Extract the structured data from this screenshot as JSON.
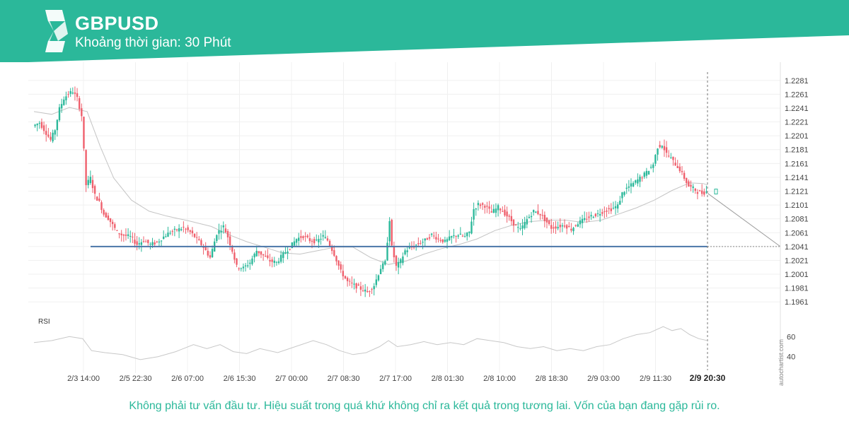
{
  "header": {
    "symbol": "GBPUSD",
    "interval_label": "Khoảng thời gian: 30 Phút",
    "brand_color": "#2bb89a"
  },
  "watermark": "autochartist.com",
  "disclaimer": "Không phải tư vấn đầu tư. Hiệu suất trong quá khứ không chỉ ra kết quả trong tương lai. Vốn của bạn đang gặp rủi ro.",
  "colors": {
    "up": "#2bb89a",
    "down": "#ef5f6c",
    "level_line": "#4a76a8",
    "moving_average": "#c4c4c4",
    "rsi_line": "#c8c8c8"
  },
  "chart_data": {
    "type": "candlestick",
    "timeframe": "30 Phút",
    "price_axis": {
      "ylim": [
        1.1951,
        1.2291
      ],
      "ticks": [
        1.2281,
        1.2261,
        1.2241,
        1.2221,
        1.2201,
        1.2181,
        1.2161,
        1.2141,
        1.2121,
        1.2101,
        1.2081,
        1.2061,
        1.2041,
        1.2021,
        1.2001,
        1.1981,
        1.1961
      ]
    },
    "x_axis": {
      "labels": [
        "2/3 14:00",
        "2/5 22:30",
        "2/6 07:00",
        "2/6 15:30",
        "2/7 00:00",
        "2/7 08:30",
        "2/7 17:00",
        "2/8 01:30",
        "2/8 10:00",
        "2/8 18:30",
        "2/9 03:00",
        "2/9 11:30",
        "2/9 20:30"
      ],
      "highlighted": "2/9 20:30"
    },
    "horizontal_level": 1.2041,
    "projection": {
      "from": 1.2118,
      "to": 1.2041
    },
    "price_path": [
      [
        0,
        1.2215
      ],
      [
        3,
        1.222
      ],
      [
        6,
        1.2205
      ],
      [
        8,
        1.2195
      ],
      [
        10,
        1.221
      ],
      [
        12,
        1.224
      ],
      [
        14,
        1.2255
      ],
      [
        16,
        1.2262
      ],
      [
        18,
        1.2265
      ],
      [
        20,
        1.2255
      ],
      [
        22,
        1.223
      ],
      [
        24,
        1.213
      ],
      [
        26,
        1.214
      ],
      [
        28,
        1.2115
      ],
      [
        30,
        1.2105
      ],
      [
        32,
        1.2088
      ],
      [
        34,
        1.2082
      ],
      [
        36,
        1.2072
      ],
      [
        38,
        1.2062
      ],
      [
        40,
        1.2058
      ],
      [
        44,
        1.2055
      ],
      [
        47,
        1.2044
      ],
      [
        50,
        1.205
      ],
      [
        53,
        1.2044
      ],
      [
        56,
        1.2047
      ],
      [
        59,
        1.2055
      ],
      [
        62,
        1.2062
      ],
      [
        65,
        1.2065
      ],
      [
        68,
        1.2068
      ],
      [
        71,
        1.2062
      ],
      [
        74,
        1.2052
      ],
      [
        77,
        1.204
      ],
      [
        80,
        1.2025
      ],
      [
        83,
        1.206
      ],
      [
        86,
        1.207
      ],
      [
        88,
        1.2055
      ],
      [
        90,
        1.2035
      ],
      [
        92,
        1.2012
      ],
      [
        95,
        1.201
      ],
      [
        98,
        1.2018
      ],
      [
        101,
        1.2035
      ],
      [
        104,
        1.2028
      ],
      [
        107,
        1.202
      ],
      [
        110,
        1.2018
      ],
      [
        113,
        1.203
      ],
      [
        116,
        1.204
      ],
      [
        119,
        1.2052
      ],
      [
        122,
        1.2056
      ],
      [
        125,
        1.205
      ],
      [
        128,
        1.2048
      ],
      [
        131,
        1.2056
      ],
      [
        133,
        1.205
      ],
      [
        136,
        1.203
      ],
      [
        139,
        1.2005
      ],
      [
        142,
        1.199
      ],
      [
        145,
        1.1985
      ],
      [
        148,
        1.198
      ],
      [
        151,
        1.1975
      ],
      [
        154,
        1.1985
      ],
      [
        157,
        1.201
      ],
      [
        159,
        1.2018
      ],
      [
        161,
        1.208
      ],
      [
        162,
        1.204
      ],
      [
        164,
        1.2012
      ],
      [
        166,
        1.202
      ],
      [
        168,
        1.2035
      ],
      [
        171,
        1.204
      ],
      [
        174,
        1.2045
      ],
      [
        177,
        1.205
      ],
      [
        180,
        1.2058
      ],
      [
        183,
        1.2052
      ],
      [
        186,
        1.2048
      ],
      [
        189,
        1.2055
      ],
      [
        192,
        1.2058
      ],
      [
        195,
        1.2055
      ],
      [
        197,
        1.2062
      ],
      [
        199,
        1.2095
      ],
      [
        201,
        1.2102
      ],
      [
        204,
        1.21
      ],
      [
        207,
        1.209
      ],
      [
        210,
        1.2098
      ],
      [
        212,
        1.2092
      ],
      [
        215,
        1.2082
      ],
      [
        218,
        1.207
      ],
      [
        220,
        1.2065
      ],
      [
        223,
        1.208
      ],
      [
        226,
        1.2092
      ],
      [
        229,
        1.2088
      ],
      [
        231,
        1.208
      ],
      [
        234,
        1.2068
      ],
      [
        237,
        1.207
      ],
      [
        240,
        1.2072
      ],
      [
        243,
        1.2066
      ],
      [
        246,
        1.2075
      ],
      [
        249,
        1.208
      ],
      [
        252,
        1.2085
      ],
      [
        255,
        1.2088
      ],
      [
        258,
        1.2093
      ],
      [
        261,
        1.2095
      ],
      [
        264,
        1.21
      ],
      [
        266,
        1.2118
      ],
      [
        268,
        1.2125
      ],
      [
        271,
        1.2132
      ],
      [
        274,
        1.214
      ],
      [
        277,
        1.2148
      ],
      [
        280,
        1.216
      ],
      [
        282,
        1.2185
      ],
      [
        284,
        1.2188
      ],
      [
        286,
        1.2175
      ],
      [
        288,
        1.2168
      ],
      [
        290,
        1.216
      ],
      [
        292,
        1.2152
      ],
      [
        294,
        1.214
      ],
      [
        296,
        1.2128
      ],
      [
        298,
        1.2125
      ],
      [
        300,
        1.212
      ],
      [
        302,
        1.2118
      ],
      [
        304,
        1.212
      ]
    ],
    "rsi": {
      "label": "RSI",
      "ticks": [
        60,
        40
      ],
      "ylim": [
        32,
        80
      ],
      "path": [
        [
          0,
          54
        ],
        [
          8,
          56
        ],
        [
          16,
          60
        ],
        [
          22,
          58
        ],
        [
          26,
          46
        ],
        [
          32,
          44
        ],
        [
          40,
          42
        ],
        [
          48,
          37
        ],
        [
          56,
          40
        ],
        [
          64,
          45
        ],
        [
          72,
          52
        ],
        [
          78,
          48
        ],
        [
          84,
          52
        ],
        [
          90,
          45
        ],
        [
          96,
          43
        ],
        [
          102,
          48
        ],
        [
          110,
          44
        ],
        [
          118,
          50
        ],
        [
          126,
          56
        ],
        [
          132,
          52
        ],
        [
          138,
          46
        ],
        [
          144,
          42
        ],
        [
          150,
          44
        ],
        [
          156,
          50
        ],
        [
          160,
          56
        ],
        [
          164,
          50
        ],
        [
          170,
          52
        ],
        [
          176,
          55
        ],
        [
          182,
          52
        ],
        [
          188,
          54
        ],
        [
          194,
          52
        ],
        [
          200,
          58
        ],
        [
          206,
          56
        ],
        [
          212,
          54
        ],
        [
          218,
          50
        ],
        [
          224,
          48
        ],
        [
          230,
          50
        ],
        [
          236,
          46
        ],
        [
          242,
          48
        ],
        [
          248,
          46
        ],
        [
          254,
          50
        ],
        [
          260,
          52
        ],
        [
          266,
          58
        ],
        [
          272,
          62
        ],
        [
          278,
          64
        ],
        [
          284,
          70
        ],
        [
          288,
          66
        ],
        [
          292,
          68
        ],
        [
          296,
          62
        ],
        [
          300,
          58
        ],
        [
          304,
          56
        ]
      ]
    },
    "moving_average": {
      "path": [
        [
          0,
          1.2236
        ],
        [
          8,
          1.2232
        ],
        [
          16,
          1.2242
        ],
        [
          24,
          1.2236
        ],
        [
          30,
          1.2185
        ],
        [
          36,
          1.214
        ],
        [
          44,
          1.2108
        ],
        [
          52,
          1.2092
        ],
        [
          60,
          1.2085
        ],
        [
          70,
          1.2078
        ],
        [
          80,
          1.207
        ],
        [
          88,
          1.2058
        ],
        [
          96,
          1.2048
        ],
        [
          104,
          1.204
        ],
        [
          112,
          1.2032
        ],
        [
          120,
          1.203
        ],
        [
          128,
          1.2035
        ],
        [
          136,
          1.204
        ],
        [
          144,
          1.204
        ],
        [
          152,
          1.2025
        ],
        [
          160,
          1.2015
        ],
        [
          168,
          1.202
        ],
        [
          176,
          1.203
        ],
        [
          184,
          1.2038
        ],
        [
          192,
          1.2044
        ],
        [
          200,
          1.2052
        ],
        [
          208,
          1.2064
        ],
        [
          216,
          1.2072
        ],
        [
          224,
          1.2077
        ],
        [
          232,
          1.2079
        ],
        [
          240,
          1.2079
        ],
        [
          248,
          1.2076
        ],
        [
          256,
          1.2079
        ],
        [
          264,
          1.2088
        ],
        [
          272,
          1.2097
        ],
        [
          280,
          1.2108
        ],
        [
          288,
          1.2122
        ],
        [
          296,
          1.2133
        ],
        [
          302,
          1.2132
        ],
        [
          304,
          1.213
        ]
      ]
    }
  }
}
